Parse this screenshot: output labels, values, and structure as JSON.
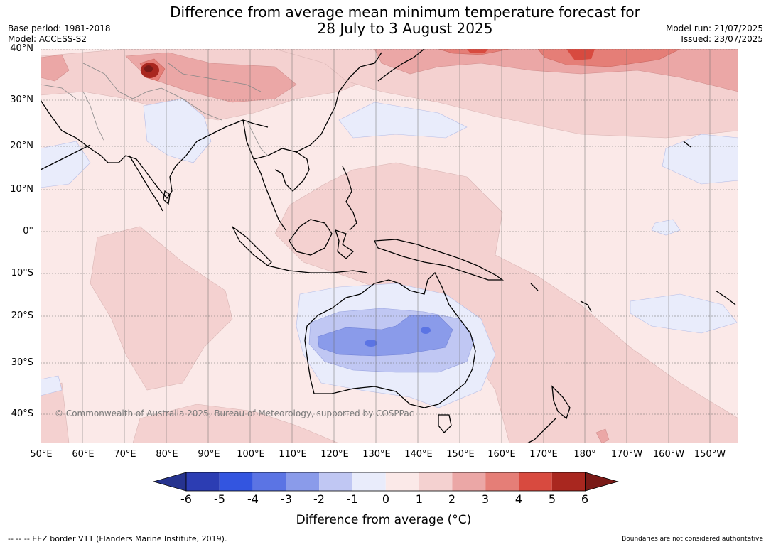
{
  "title_line1": "Difference from average mean minimum temperature forecast for",
  "title_line2": "28 July to 3 August 2025",
  "base_period": "Base period: 1981-2018",
  "model": "Model: ACCESS-S2",
  "model_run": "Model run: 21/07/2025",
  "issued": "Issued: 23/07/2025",
  "lat_labels": [
    "40°N",
    "30°N",
    "20°N",
    "10°N",
    "0°",
    "10°S",
    "20°S",
    "30°S",
    "40°S"
  ],
  "lon_labels": [
    "50°E",
    "60°E",
    "70°E",
    "80°E",
    "90°E",
    "100°E",
    "110°E",
    "120°E",
    "130°E",
    "140°E",
    "150°E",
    "160°E",
    "170°E",
    "180°",
    "170°W",
    "160°W",
    "150°W"
  ],
  "copyright": "© Commonwealth of Australia 2025, Bureau of Meteorology, supported by COSPPac",
  "colorbar": {
    "ticks": [
      "-6",
      "-5",
      "-4",
      "-3",
      "-2",
      "-1",
      "0",
      "1",
      "2",
      "3",
      "4",
      "5",
      "6"
    ],
    "colors": [
      "#26338f",
      "#2c3db3",
      "#3355e0",
      "#5b74e4",
      "#8a9bea",
      "#c0c7f3",
      "#e9ecfb",
      "#fbe9e8",
      "#f4d1d0",
      "#eba7a6",
      "#e57e77",
      "#d84a3f",
      "#a9271f",
      "#7a1a17"
    ],
    "title": "Difference from average (°C)"
  },
  "eez_note": "-- -- -- EEZ border V11 (Flanders Marine Institute, 2019).",
  "disclaimer": "Boundaries are not considered authoritative"
}
